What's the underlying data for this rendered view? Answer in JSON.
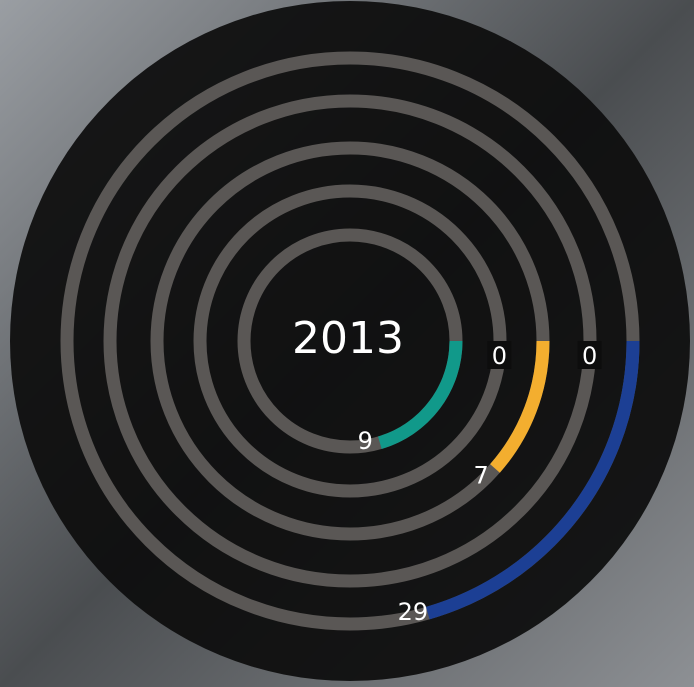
{
  "chart_data": {
    "type": "radial-bar",
    "title": "2013",
    "series": [
      {
        "values": [
          9
        ],
        "color": "#11998a",
        "lim": [
          0,
          44
        ]
      },
      {
        "values": [
          0
        ],
        "color": "#f3ae2f",
        "lim": [
          0,
          60
        ]
      },
      {
        "values": [
          7
        ],
        "color": "#f3ae2f",
        "lim": [
          0,
          61
        ]
      },
      {
        "values": [
          0
        ],
        "color": "#1c3f94",
        "lim": [
          0,
          140
        ]
      },
      {
        "values": [
          29
        ],
        "color": "#1c3f94",
        "lim": [
          0,
          141
        ]
      }
    ],
    "track_color": "#5a5755"
  }
}
